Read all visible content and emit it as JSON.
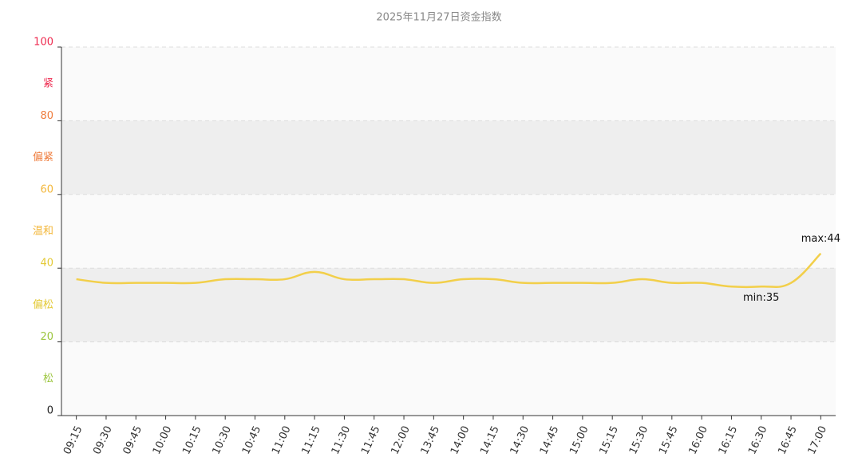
{
  "chart_data": {
    "type": "line",
    "title": "2025年11月27日资金指数",
    "categories": [
      "09:15",
      "09:30",
      "09:45",
      "10:00",
      "10:15",
      "10:30",
      "10:45",
      "11:00",
      "11:15",
      "11:30",
      "11:45",
      "12:00",
      "13:45",
      "14:00",
      "14:15",
      "14:30",
      "14:45",
      "15:00",
      "15:15",
      "15:30",
      "15:45",
      "16:00",
      "16:15",
      "16:30",
      "16:45",
      "17:00"
    ],
    "series": [
      {
        "name": "资金指数",
        "color": "#f2cf4a",
        "values": [
          37,
          36,
          36,
          36,
          36,
          37,
          37,
          37,
          39,
          37,
          37,
          37,
          36,
          37,
          37,
          36,
          36,
          36,
          36,
          37,
          36,
          36,
          35,
          35,
          36,
          44
        ]
      }
    ],
    "ylim": [
      0,
      100
    ],
    "yticks": [
      0,
      20,
      40,
      60,
      80,
      100
    ],
    "ytick_colors": [
      "#222222",
      "#9bc53d",
      "#e3c935",
      "#f3b73b",
      "#ef7c3c",
      "#ee2a4f"
    ],
    "bands": [
      {
        "from": 80,
        "to": 100,
        "label": "紧",
        "color": "#ee2a4f",
        "background": "#fafafa"
      },
      {
        "from": 60,
        "to": 80,
        "label": "偏紧",
        "color": "#ef7c3c",
        "background": "#eeeeee"
      },
      {
        "from": 40,
        "to": 60,
        "label": "温和",
        "color": "#f3b73b",
        "background": "#fafafa"
      },
      {
        "from": 20,
        "to": 40,
        "label": "偏松",
        "color": "#e3c935",
        "background": "#eeeeee"
      },
      {
        "from": 0,
        "to": 20,
        "label": "松",
        "color": "#9bc53d",
        "background": "#fafafa"
      }
    ],
    "max_label": "max:44",
    "min_label": "min:35",
    "grid": true
  }
}
